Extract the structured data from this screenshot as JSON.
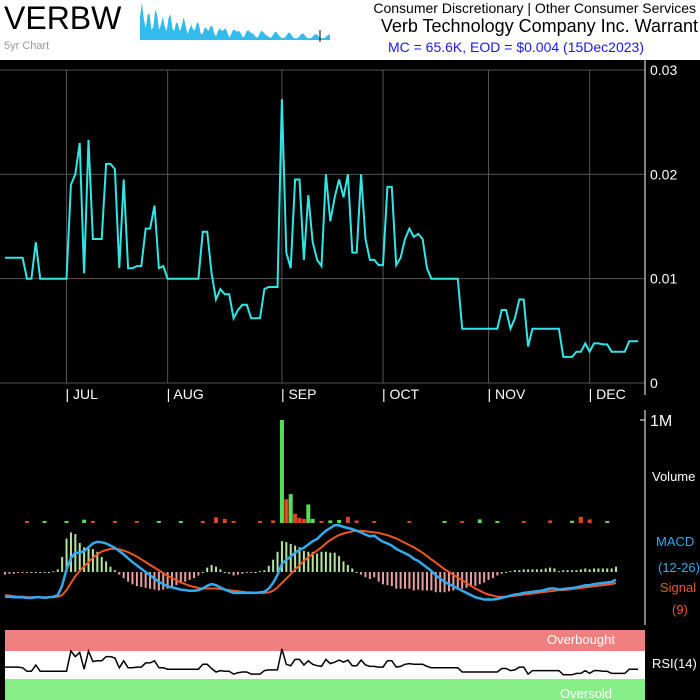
{
  "header": {
    "ticker": "VERBW",
    "spark_label": "5yr Chart",
    "sector": "Consumer Discretionary | Other Consumer Services",
    "company": "Verb Technology Company Inc. Warrant",
    "mc_line": "MC = 65.6K, EOD = $0.004 (15Dec2023)"
  },
  "colors": {
    "background": "#000000",
    "price_line": "#33e6e6",
    "grid": "#555555",
    "vol_up": "#55dd55",
    "vol_down": "#dd4422",
    "macd_line": "#33aaee",
    "signal_line": "#ee5522",
    "overbought": "#f08080",
    "oversold": "#88ee88"
  },
  "chart_data": [
    {
      "type": "line",
      "name": "price",
      "ylim": [
        0,
        0.03
      ],
      "y_ticks": [
        "0.03",
        "0.02",
        "0.01",
        "0"
      ],
      "y_tick_values": [
        0.03,
        0.02,
        0.01,
        0
      ],
      "month_labels": [
        "| JUL",
        "| AUG",
        "| SEP",
        "| OCT",
        "| NOV",
        "| DEC"
      ],
      "month_index": [
        14,
        37,
        63,
        86,
        110,
        133
      ],
      "values": [
        0.012,
        0.012,
        0.012,
        0.012,
        0.012,
        0.01,
        0.01,
        0.0135,
        0.01,
        0.01,
        0.01,
        0.01,
        0.01,
        0.01,
        0.01,
        0.019,
        0.02,
        0.023,
        0.0105,
        0.0233,
        0.0138,
        0.0138,
        0.0138,
        0.021,
        0.021,
        0.0205,
        0.011,
        0.0195,
        0.011,
        0.011,
        0.0112,
        0.0112,
        0.0148,
        0.0148,
        0.017,
        0.011,
        0.0112,
        0.01,
        0.01,
        0.01,
        0.01,
        0.01,
        0.01,
        0.01,
        0.01,
        0.0145,
        0.0145,
        0.0105,
        0.008,
        0.009,
        0.0085,
        0.0085,
        0.0062,
        0.007,
        0.0075,
        0.0075,
        0.0062,
        0.0062,
        0.0062,
        0.009,
        0.0092,
        0.0092,
        0.0092,
        0.0272,
        0.0125,
        0.011,
        0.0195,
        0.0195,
        0.0118,
        0.018,
        0.0135,
        0.0118,
        0.0112,
        0.02,
        0.0155,
        0.0178,
        0.0195,
        0.0178,
        0.02,
        0.0125,
        0.0125,
        0.02,
        0.0138,
        0.0118,
        0.0118,
        0.0113,
        0.0113,
        0.0188,
        0.0188,
        0.0113,
        0.012,
        0.0138,
        0.0148,
        0.014,
        0.0143,
        0.0138,
        0.011,
        0.01,
        0.01,
        0.01,
        0.01,
        0.01,
        0.01,
        0.01,
        0.0052,
        0.0052,
        0.0052,
        0.0052,
        0.0052,
        0.0052,
        0.0052,
        0.0052,
        0.0052,
        0.007,
        0.007,
        0.0052,
        0.0062,
        0.008,
        0.008,
        0.0035,
        0.0052,
        0.0052,
        0.0052,
        0.0052,
        0.0052,
        0.0052,
        0.0052,
        0.0025,
        0.0025,
        0.0025,
        0.003,
        0.003,
        0.0038,
        0.003,
        0.0038,
        0.0038,
        0.0037,
        0.0037,
        0.003,
        0.003,
        0.003,
        0.003,
        0.004,
        0.004,
        0.004
      ]
    },
    {
      "type": "bar",
      "name": "volume",
      "label": "Volume",
      "y_tick": "1M",
      "ylim": [
        0,
        1000000
      ],
      "volume_bars": [
        {
          "i": 5,
          "v": 18000,
          "up": false
        },
        {
          "i": 9,
          "v": 20000,
          "up": true
        },
        {
          "i": 14,
          "v": 15000,
          "up": true
        },
        {
          "i": 18,
          "v": 32000,
          "up": true
        },
        {
          "i": 20,
          "v": 15000,
          "up": false
        },
        {
          "i": 25,
          "v": 10000,
          "up": false
        },
        {
          "i": 30,
          "v": 12000,
          "up": false
        },
        {
          "i": 35,
          "v": 12000,
          "up": true
        },
        {
          "i": 40,
          "v": 10000,
          "up": true
        },
        {
          "i": 45,
          "v": 12000,
          "up": false
        },
        {
          "i": 48,
          "v": 55000,
          "up": false
        },
        {
          "i": 50,
          "v": 40000,
          "up": false
        },
        {
          "i": 52,
          "v": 20000,
          "up": false
        },
        {
          "i": 58,
          "v": 20000,
          "up": false
        },
        {
          "i": 61,
          "v": 25000,
          "up": false
        },
        {
          "i": 63,
          "v": 1000000,
          "up": true
        },
        {
          "i": 64,
          "v": 230000,
          "up": false
        },
        {
          "i": 65,
          "v": 280000,
          "up": true
        },
        {
          "i": 66,
          "v": 90000,
          "up": false
        },
        {
          "i": 67,
          "v": 50000,
          "up": false
        },
        {
          "i": 68,
          "v": 40000,
          "up": false
        },
        {
          "i": 69,
          "v": 180000,
          "up": true
        },
        {
          "i": 70,
          "v": 40000,
          "up": true
        },
        {
          "i": 72,
          "v": 20000,
          "up": false
        },
        {
          "i": 74,
          "v": 25000,
          "up": true
        },
        {
          "i": 76,
          "v": 30000,
          "up": true
        },
        {
          "i": 78,
          "v": 60000,
          "up": false
        },
        {
          "i": 80,
          "v": 25000,
          "up": false
        },
        {
          "i": 84,
          "v": 15000,
          "up": false
        },
        {
          "i": 92,
          "v": 12000,
          "up": false
        },
        {
          "i": 100,
          "v": 12000,
          "up": true
        },
        {
          "i": 104,
          "v": 12000,
          "up": false
        },
        {
          "i": 108,
          "v": 35000,
          "up": true
        },
        {
          "i": 112,
          "v": 15000,
          "up": true
        },
        {
          "i": 118,
          "v": 20000,
          "up": false
        },
        {
          "i": 124,
          "v": 25000,
          "up": false
        },
        {
          "i": 129,
          "v": 22000,
          "up": true
        },
        {
          "i": 131,
          "v": 60000,
          "up": false
        },
        {
          "i": 133,
          "v": 35000,
          "up": false
        },
        {
          "i": 137,
          "v": 12000,
          "up": true
        }
      ]
    },
    {
      "type": "line",
      "name": "macd",
      "labels": [
        "MACD",
        "(12-26)",
        "Signal",
        "(9)"
      ],
      "macd": [
        -0.45,
        -0.45,
        -0.46,
        -0.46,
        -0.46,
        -0.47,
        -0.47,
        -0.46,
        -0.46,
        -0.47,
        -0.46,
        -0.45,
        -0.42,
        -0.25,
        0.05,
        0.25,
        0.35,
        0.35,
        0.38,
        0.45,
        0.52,
        0.55,
        0.54,
        0.52,
        0.48,
        0.44,
        0.38,
        0.32,
        0.25,
        0.18,
        0.12,
        0.06,
        0.0,
        -0.06,
        -0.12,
        -0.18,
        -0.22,
        -0.26,
        -0.28,
        -0.3,
        -0.32,
        -0.33,
        -0.34,
        -0.34,
        -0.33,
        -0.3,
        -0.25,
        -0.22,
        -0.24,
        -0.28,
        -0.32,
        -0.35,
        -0.38,
        -0.38,
        -0.38,
        -0.38,
        -0.38,
        -0.38,
        -0.37,
        -0.36,
        -0.3,
        -0.2,
        -0.05,
        0.15,
        0.22,
        0.28,
        0.35,
        0.4,
        0.44,
        0.5,
        0.56,
        0.6,
        0.68,
        0.75,
        0.8,
        0.85,
        0.85,
        0.82,
        0.8,
        0.78,
        0.75,
        0.72,
        0.68,
        0.65,
        0.66,
        0.6,
        0.55,
        0.52,
        0.48,
        0.42,
        0.38,
        0.34,
        0.3,
        0.24,
        0.2,
        0.14,
        0.08,
        0.02,
        -0.06,
        -0.12,
        -0.18,
        -0.22,
        -0.26,
        -0.3,
        -0.34,
        -0.38,
        -0.42,
        -0.46,
        -0.48,
        -0.5,
        -0.5,
        -0.5,
        -0.49,
        -0.47,
        -0.45,
        -0.43,
        -0.41,
        -0.4,
        -0.38,
        -0.37,
        -0.36,
        -0.35,
        -0.34,
        -0.32,
        -0.3,
        -0.3,
        -0.32,
        -0.31,
        -0.3,
        -0.29,
        -0.28,
        -0.26,
        -0.24,
        -0.24,
        -0.22,
        -0.21,
        -0.2,
        -0.19,
        -0.18,
        -0.14
      ],
      "signal": [
        -0.42,
        -0.43,
        -0.44,
        -0.45,
        -0.45,
        -0.46,
        -0.46,
        -0.46,
        -0.46,
        -0.46,
        -0.46,
        -0.46,
        -0.45,
        -0.42,
        -0.33,
        -0.2,
        -0.08,
        0.02,
        0.1,
        0.18,
        0.26,
        0.32,
        0.37,
        0.4,
        0.42,
        0.42,
        0.41,
        0.39,
        0.36,
        0.32,
        0.28,
        0.23,
        0.18,
        0.13,
        0.08,
        0.03,
        -0.02,
        -0.07,
        -0.11,
        -0.15,
        -0.19,
        -0.22,
        -0.25,
        -0.27,
        -0.29,
        -0.3,
        -0.3,
        -0.3,
        -0.3,
        -0.31,
        -0.32,
        -0.33,
        -0.34,
        -0.35,
        -0.36,
        -0.37,
        -0.37,
        -0.38,
        -0.38,
        -0.38,
        -0.37,
        -0.34,
        -0.28,
        -0.2,
        -0.12,
        -0.04,
        0.05,
        0.12,
        0.2,
        0.27,
        0.33,
        0.39,
        0.45,
        0.52,
        0.58,
        0.63,
        0.67,
        0.7,
        0.72,
        0.74,
        0.75,
        0.75,
        0.74,
        0.73,
        0.72,
        0.71,
        0.69,
        0.67,
        0.64,
        0.61,
        0.57,
        0.53,
        0.49,
        0.45,
        0.4,
        0.35,
        0.29,
        0.23,
        0.17,
        0.11,
        0.05,
        0.0,
        -0.05,
        -0.1,
        -0.15,
        -0.2,
        -0.25,
        -0.3,
        -0.34,
        -0.38,
        -0.41,
        -0.43,
        -0.45,
        -0.45,
        -0.45,
        -0.44,
        -0.43,
        -0.42,
        -0.41,
        -0.4,
        -0.39,
        -0.38,
        -0.37,
        -0.36,
        -0.35,
        -0.34,
        -0.33,
        -0.33,
        -0.32,
        -0.31,
        -0.3,
        -0.29,
        -0.28,
        -0.27,
        -0.26,
        -0.25,
        -0.24,
        -0.23,
        -0.22,
        -0.2
      ]
    },
    {
      "type": "line",
      "name": "rsi",
      "label": "RSI(14)",
      "overbought_label": "Overbought",
      "oversold_label": "Oversold",
      "ylim": [
        0,
        100
      ],
      "overbought_level": 70,
      "oversold_level": 30,
      "values": [
        47,
        47,
        47,
        47,
        46,
        41,
        41,
        50,
        41,
        41,
        41,
        41,
        41,
        41,
        41,
        70,
        62,
        68,
        44,
        70,
        55,
        56,
        56,
        62,
        62,
        60,
        46,
        56,
        46,
        46,
        47,
        47,
        53,
        53,
        56,
        46,
        46,
        44,
        44,
        44,
        44,
        44,
        44,
        44,
        44,
        51,
        51,
        45,
        40,
        42,
        41,
        41,
        37,
        39,
        40,
        40,
        37,
        37,
        37,
        42,
        43,
        43,
        43,
        73,
        51,
        49,
        58,
        58,
        50,
        56,
        51,
        49,
        48,
        58,
        52,
        54,
        57,
        54,
        57,
        49,
        49,
        57,
        50,
        48,
        48,
        47,
        47,
        56,
        56,
        47,
        48,
        51,
        52,
        51,
        51,
        51,
        48,
        46,
        46,
        46,
        46,
        46,
        46,
        46,
        40,
        40,
        40,
        40,
        40,
        40,
        40,
        40,
        40,
        45,
        45,
        42,
        43,
        47,
        47,
        37,
        42,
        42,
        42,
        42,
        42,
        42,
        42,
        36,
        36,
        36,
        38,
        38,
        42,
        38,
        42,
        42,
        41,
        41,
        38,
        38,
        38,
        38,
        44,
        44,
        44
      ]
    }
  ]
}
